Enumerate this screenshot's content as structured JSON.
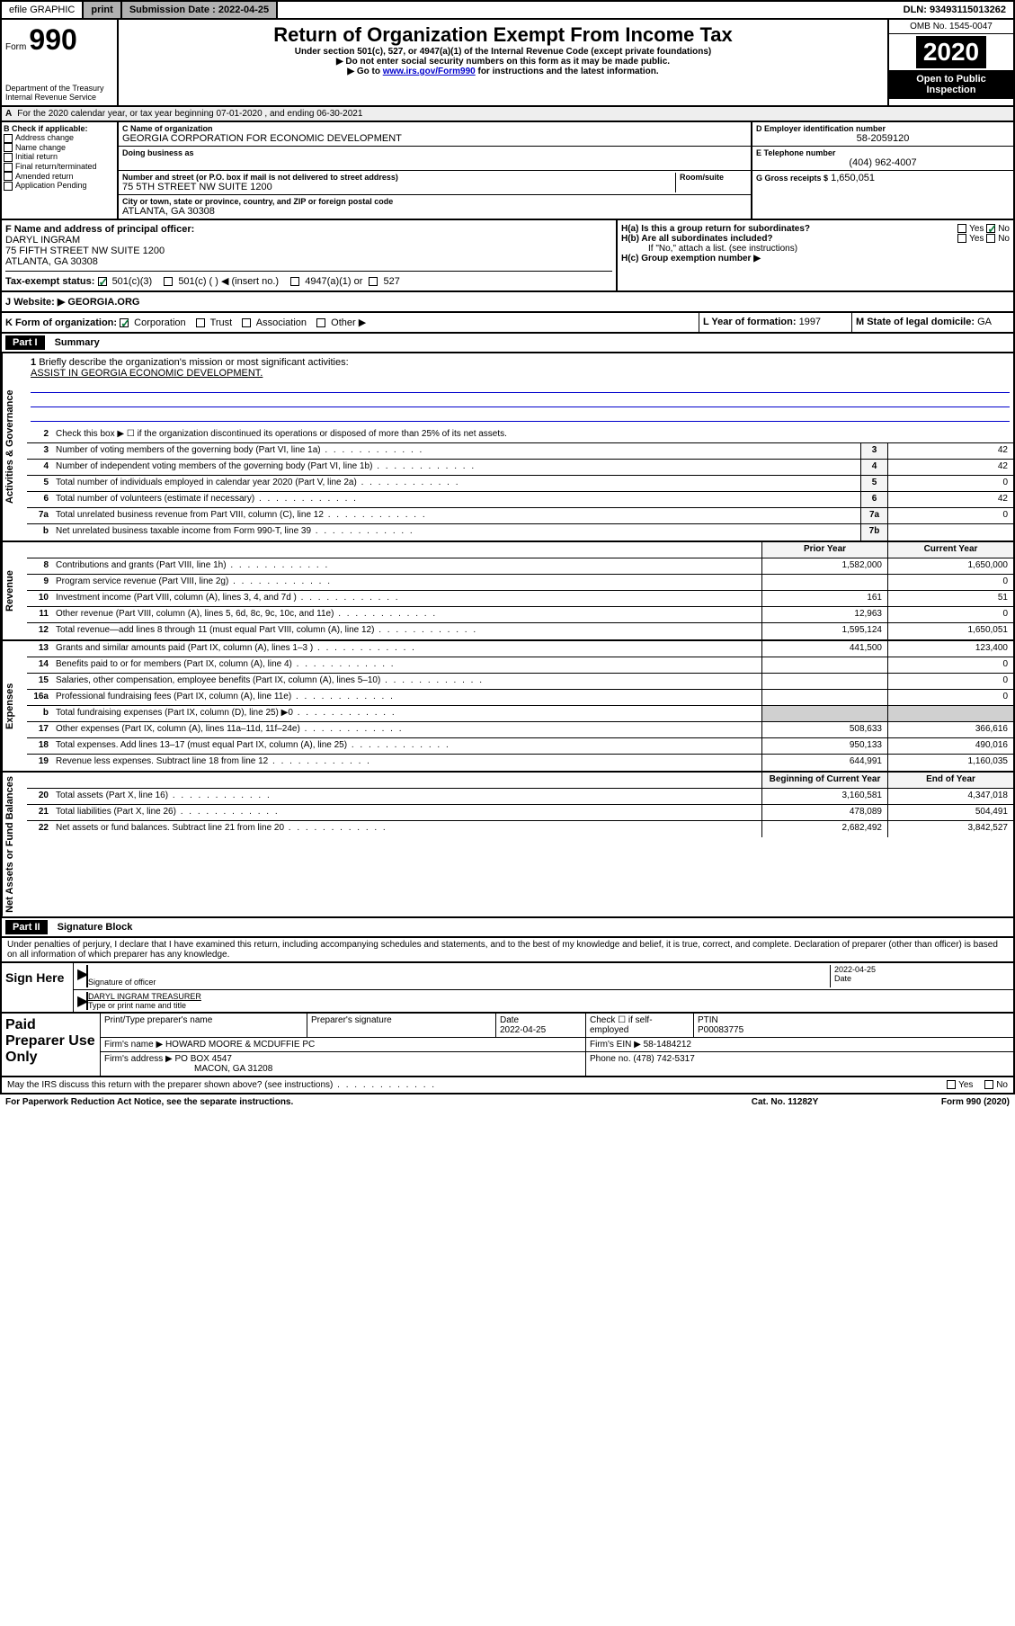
{
  "top": {
    "efile": "efile GRAPHIC",
    "print": "print",
    "sub_label": "Submission Date :",
    "sub_date": "2022-04-25",
    "dln": "DLN: 93493115013262"
  },
  "header": {
    "form_label": "Form",
    "form_no": "990",
    "title": "Return of Organization Exempt From Income Tax",
    "subtitle": "Under section 501(c), 527, or 4947(a)(1) of the Internal Revenue Code (except private foundations)",
    "note1": "▶ Do not enter social security numbers on this form as it may be made public.",
    "note2_pre": "▶ Go to ",
    "note2_link": "www.irs.gov/Form990",
    "note2_post": " for instructions and the latest information.",
    "dept": "Department of the Treasury\nInternal Revenue Service",
    "omb": "OMB No. 1545-0047",
    "year": "2020",
    "open": "Open to Public Inspection"
  },
  "a": {
    "text": "For the 2020 calendar year, or tax year beginning 07-01-2020    , and ending 06-30-2021"
  },
  "b": {
    "label": "B Check if applicable:",
    "items": [
      "Address change",
      "Name change",
      "Initial return",
      "Final return/terminated",
      "Amended return",
      "Application Pending"
    ]
  },
  "c": {
    "name_label": "C Name of organization",
    "name": "GEORGIA CORPORATION FOR ECONOMIC DEVELOPMENT",
    "dba_label": "Doing business as",
    "addr_label": "Number and street (or P.O. box if mail is not delivered to street address)",
    "room_label": "Room/suite",
    "addr": "75 5TH STREET NW SUITE 1200",
    "city_label": "City or town, state or province, country, and ZIP or foreign postal code",
    "city": "ATLANTA, GA  30308"
  },
  "d": {
    "label": "D Employer identification number",
    "val": "58-2059120"
  },
  "e": {
    "label": "E Telephone number",
    "val": "(404) 962-4007"
  },
  "g": {
    "label": "G Gross receipts $",
    "val": "1,650,051"
  },
  "f": {
    "label": "F  Name and address of principal officer:",
    "name": "DARYL INGRAM",
    "addr1": "75 FIFTH STREET NW SUITE 1200",
    "addr2": "ATLANTA, GA  30308"
  },
  "h": {
    "a_label": "H(a)  Is this a group return for subordinates?",
    "b_label": "H(b)  Are all subordinates included?",
    "b_note": "If \"No,\" attach a list. (see instructions)",
    "c_label": "H(c)  Group exemption number ▶",
    "yes": "Yes",
    "no": "No"
  },
  "i": {
    "label": "Tax-exempt status:",
    "opts": [
      "501(c)(3)",
      "501(c) (  ) ◀ (insert no.)",
      "4947(a)(1) or",
      "527"
    ]
  },
  "j": {
    "label": "Website: ▶",
    "val": "GEORGIA.ORG"
  },
  "k": {
    "label": "K Form of organization:",
    "opts": [
      "Corporation",
      "Trust",
      "Association",
      "Other ▶"
    ]
  },
  "l": {
    "label": "L Year of formation:",
    "val": "1997"
  },
  "m": {
    "label": "M State of legal domicile:",
    "val": "GA"
  },
  "part1": {
    "title": "Part I",
    "subtitle": "Summary",
    "line1_label": "Briefly describe the organization's mission or most significant activities:",
    "line1_val": "ASSIST IN GEORGIA ECONOMIC DEVELOPMENT.",
    "line2": "Check this box ▶ ☐  if the organization discontinued its operations or disposed of more than 25% of its net assets.",
    "vtab1": "Activities & Governance",
    "vtab2": "Revenue",
    "vtab3": "Expenses",
    "vtab4": "Net Assets or Fund Balances",
    "lines_gov": [
      {
        "n": "3",
        "d": "Number of voting members of the governing body (Part VI, line 1a)",
        "b": "3",
        "v": "42"
      },
      {
        "n": "4",
        "d": "Number of independent voting members of the governing body (Part VI, line 1b)",
        "b": "4",
        "v": "42"
      },
      {
        "n": "5",
        "d": "Total number of individuals employed in calendar year 2020 (Part V, line 2a)",
        "b": "5",
        "v": "0"
      },
      {
        "n": "6",
        "d": "Total number of volunteers (estimate if necessary)",
        "b": "6",
        "v": "42"
      },
      {
        "n": "7a",
        "d": "Total unrelated business revenue from Part VIII, column (C), line 12",
        "b": "7a",
        "v": "0"
      },
      {
        "n": "b",
        "d": "Net unrelated business taxable income from Form 990-T, line 39",
        "b": "7b",
        "v": ""
      }
    ],
    "col_prior": "Prior Year",
    "col_current": "Current Year",
    "lines_rev": [
      {
        "n": "8",
        "d": "Contributions and grants (Part VIII, line 1h)",
        "p": "1,582,000",
        "c": "1,650,000"
      },
      {
        "n": "9",
        "d": "Program service revenue (Part VIII, line 2g)",
        "p": "",
        "c": "0"
      },
      {
        "n": "10",
        "d": "Investment income (Part VIII, column (A), lines 3, 4, and 7d )",
        "p": "161",
        "c": "51"
      },
      {
        "n": "11",
        "d": "Other revenue (Part VIII, column (A), lines 5, 6d, 8c, 9c, 10c, and 11e)",
        "p": "12,963",
        "c": "0"
      },
      {
        "n": "12",
        "d": "Total revenue—add lines 8 through 11 (must equal Part VIII, column (A), line 12)",
        "p": "1,595,124",
        "c": "1,650,051"
      }
    ],
    "lines_exp": [
      {
        "n": "13",
        "d": "Grants and similar amounts paid (Part IX, column (A), lines 1–3 )",
        "p": "441,500",
        "c": "123,400"
      },
      {
        "n": "14",
        "d": "Benefits paid to or for members (Part IX, column (A), line 4)",
        "p": "",
        "c": "0"
      },
      {
        "n": "15",
        "d": "Salaries, other compensation, employee benefits (Part IX, column (A), lines 5–10)",
        "p": "",
        "c": "0"
      },
      {
        "n": "16a",
        "d": "Professional fundraising fees (Part IX, column (A), line 11e)",
        "p": "",
        "c": "0"
      },
      {
        "n": "b",
        "d": "Total fundraising expenses (Part IX, column (D), line 25) ▶0",
        "p": "—shade—",
        "c": "—shade—"
      },
      {
        "n": "17",
        "d": "Other expenses (Part IX, column (A), lines 11a–11d, 11f–24e)",
        "p": "508,633",
        "c": "366,616"
      },
      {
        "n": "18",
        "d": "Total expenses. Add lines 13–17 (must equal Part IX, column (A), line 25)",
        "p": "950,133",
        "c": "490,016"
      },
      {
        "n": "19",
        "d": "Revenue less expenses. Subtract line 18 from line 12",
        "p": "644,991",
        "c": "1,160,035"
      }
    ],
    "col_boy": "Beginning of Current Year",
    "col_eoy": "End of Year",
    "lines_net": [
      {
        "n": "20",
        "d": "Total assets (Part X, line 16)",
        "p": "3,160,581",
        "c": "4,347,018"
      },
      {
        "n": "21",
        "d": "Total liabilities (Part X, line 26)",
        "p": "478,089",
        "c": "504,491"
      },
      {
        "n": "22",
        "d": "Net assets or fund balances. Subtract line 21 from line 20",
        "p": "2,682,492",
        "c": "3,842,527"
      }
    ]
  },
  "part2": {
    "title": "Part II",
    "subtitle": "Signature Block",
    "penalty": "Under penalties of perjury, I declare that I have examined this return, including accompanying schedules and statements, and to the best of my knowledge and belief, it is true, correct, and complete. Declaration of preparer (other than officer) is based on all information of which preparer has any knowledge.",
    "sign_here": "Sign Here",
    "sig_officer": "Signature of officer",
    "sig_date": "2022-04-25",
    "date_label": "Date",
    "officer_name": "DARYL INGRAM  TREASURER",
    "type_name": "Type or print name and title",
    "paid": "Paid Preparer Use Only",
    "prep_name_label": "Print/Type preparer's name",
    "prep_sig_label": "Preparer's signature",
    "prep_date_label": "Date",
    "prep_date": "2022-04-25",
    "check_self": "Check ☐ if self-employed",
    "ptin_label": "PTIN",
    "ptin": "P00083775",
    "firm_name_label": "Firm's name     ▶",
    "firm_name": "HOWARD MOORE & MCDUFFIE PC",
    "firm_ein_label": "Firm's EIN ▶",
    "firm_ein": "58-1484212",
    "firm_addr_label": "Firm's address ▶",
    "firm_addr1": "PO BOX 4547",
    "firm_addr2": "MACON, GA  31208",
    "phone_label": "Phone no.",
    "phone": "(478) 742-5317",
    "discuss": "May the IRS discuss this return with the preparer shown above? (see instructions)",
    "paperwork": "For Paperwork Reduction Act Notice, see the separate instructions.",
    "catno": "Cat. No. 11282Y",
    "formfoot": "Form 990 (2020)"
  }
}
